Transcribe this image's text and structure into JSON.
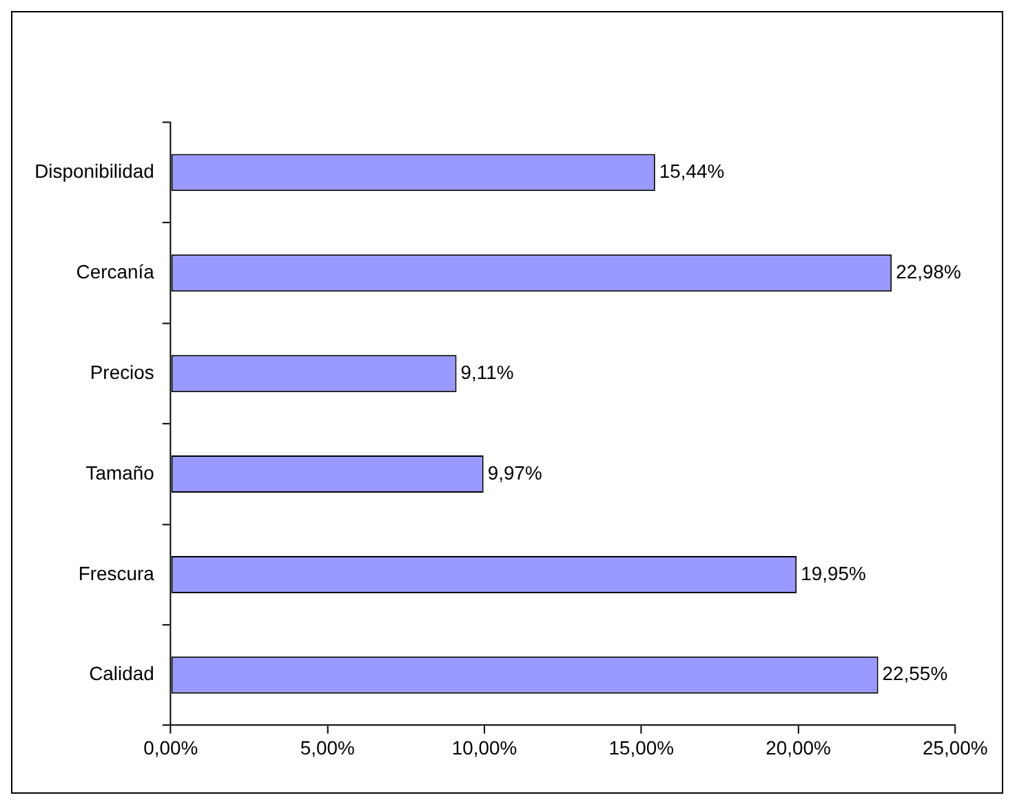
{
  "chart_data": {
    "type": "bar",
    "orientation": "horizontal",
    "categories": [
      "Disponibilidad",
      "Cercanía",
      "Precios",
      "Tamaño",
      "Frescura",
      "Calidad"
    ],
    "values": [
      15.44,
      22.98,
      9.11,
      9.97,
      19.95,
      22.55
    ],
    "color": "#9999ff",
    "value_labels": [
      "15,44%",
      "22,98%",
      "9,11%",
      "9,97%",
      "19,95%",
      "22,55%"
    ],
    "xlim": [
      0,
      25
    ],
    "xticks": [
      {
        "value": 0,
        "label": "0,00%"
      },
      {
        "value": 5,
        "label": "5,00%"
      },
      {
        "value": 10,
        "label": "10,00%"
      },
      {
        "value": 15,
        "label": "15,00%"
      },
      {
        "value": 20,
        "label": "20,00%"
      },
      {
        "value": 25,
        "label": "25,00%"
      }
    ],
    "grid": false,
    "legend": false
  }
}
